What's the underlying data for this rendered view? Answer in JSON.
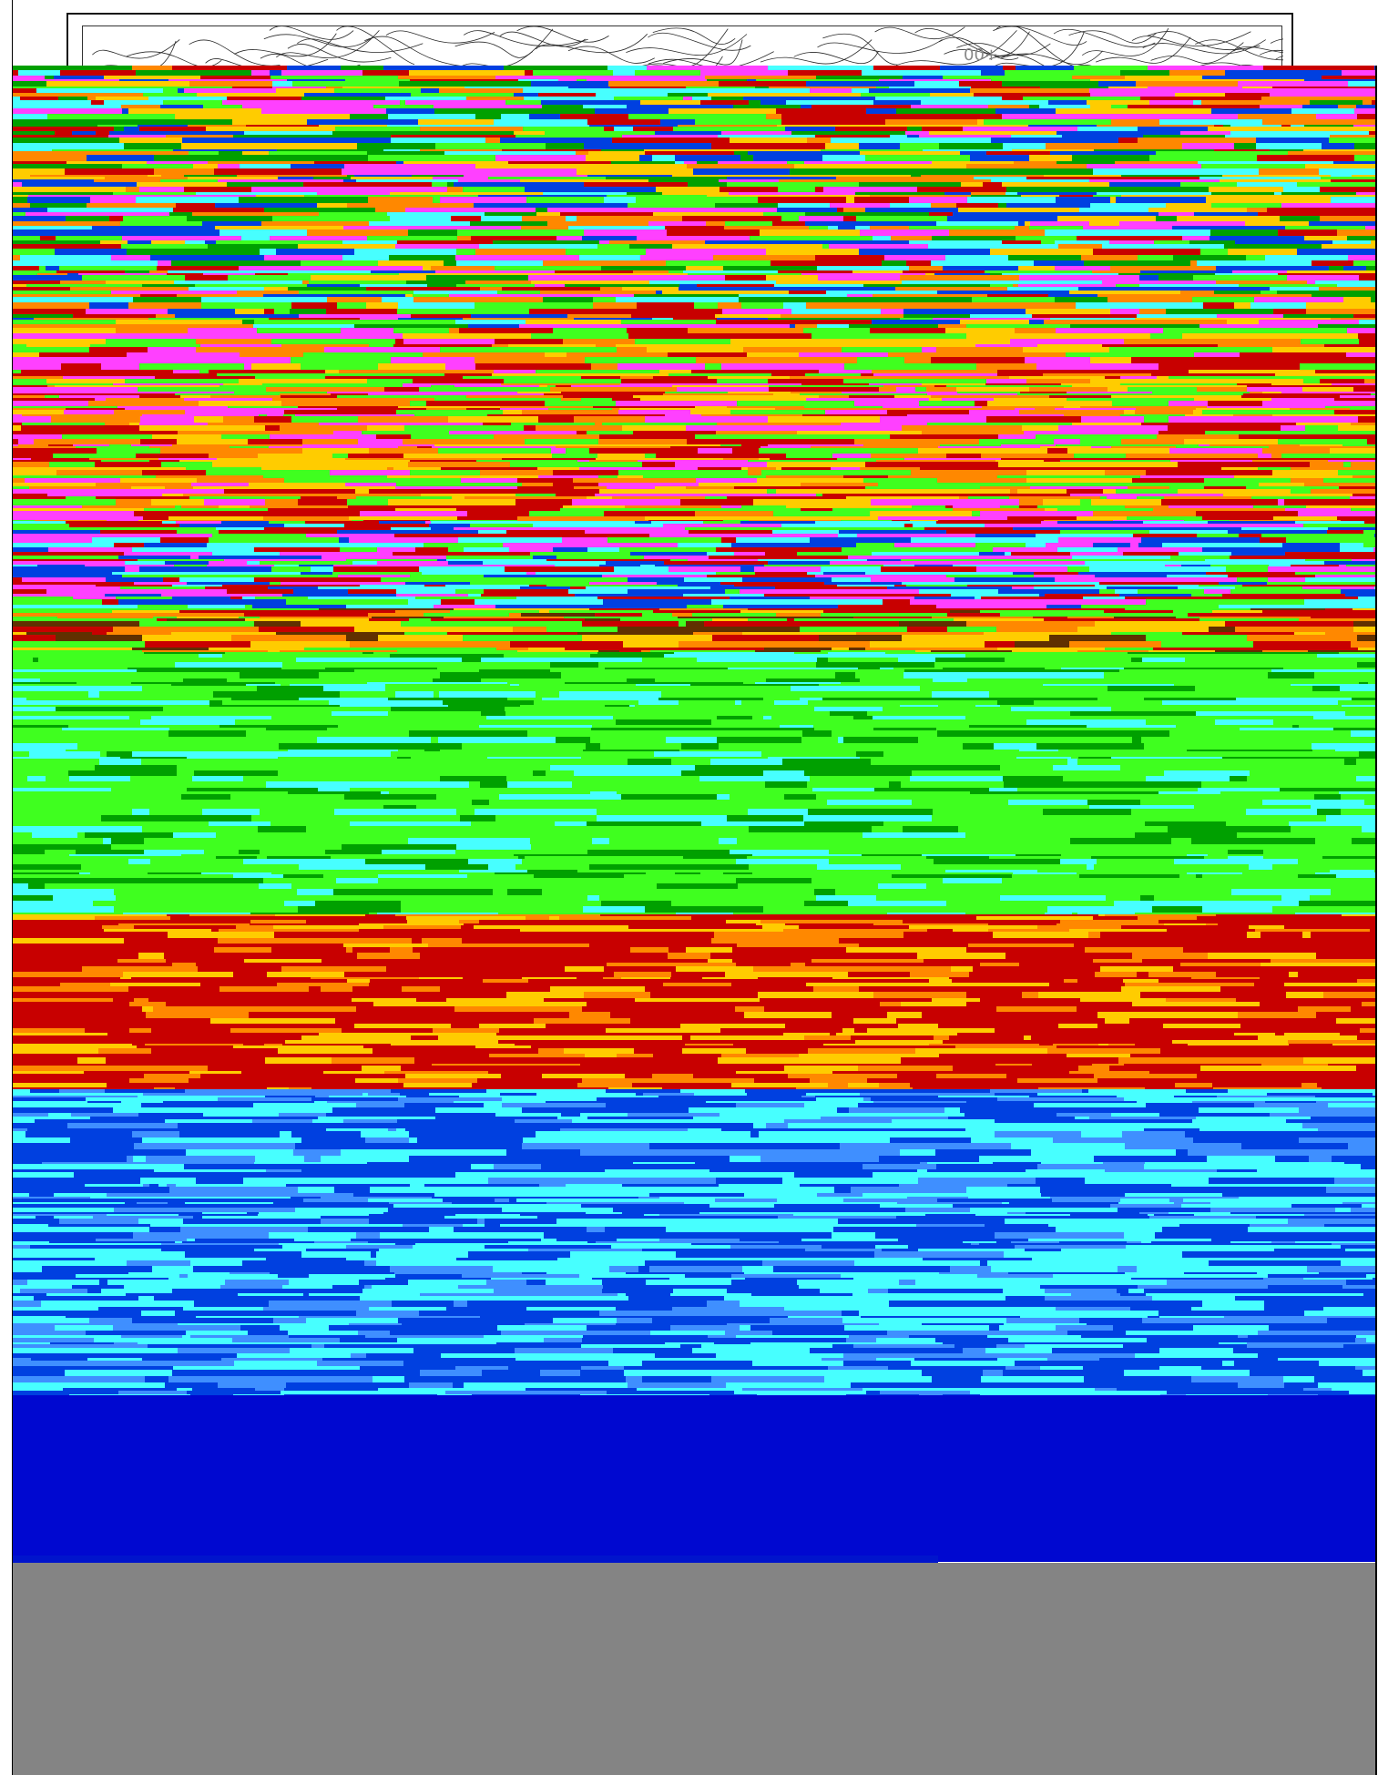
{
  "map_header": {
    "label": "00+",
    "line_color": "#2a2a2a"
  },
  "palette": {
    "cyan": "#47ffff",
    "blue": "#0040e0",
    "dark_blue": "#0008d0",
    "green": "#3fff1f",
    "dark_green": "#00a000",
    "red": "#c80000",
    "orange": "#ff8800",
    "yellow": "#ffcc00",
    "magenta": "#ff40ff",
    "brown": "#603000",
    "gray": "#848484"
  },
  "bands": [
    {
      "name": "mixed-noise",
      "colors": [
        "#47ffff",
        "#3fff1f",
        "#ff8800",
        "#ff40ff",
        "#0040e0",
        "#c80000",
        "#ffcc00",
        "#00a000"
      ],
      "weight": 30
    },
    {
      "name": "red-orange",
      "colors": [
        "#c80000",
        "#ff8800",
        "#ffcc00",
        "#ff40ff",
        "#3fff1f"
      ],
      "weight": 22
    },
    {
      "name": "magenta-cyan",
      "colors": [
        "#ff40ff",
        "#47ffff",
        "#0040e0",
        "#3fff1f",
        "#c80000"
      ],
      "weight": 10
    },
    {
      "name": "dark-earth",
      "colors": [
        "#603000",
        "#ffcc00",
        "#c80000",
        "#3fff1f",
        "#ff8800"
      ],
      "weight": 5
    },
    {
      "name": "green-field",
      "colors": [
        "#3fff1f",
        "#3fff1f",
        "#00a000",
        "#3fff1f",
        "#47ffff"
      ],
      "weight": 30
    },
    {
      "name": "red-field",
      "colors": [
        "#c80000",
        "#c80000",
        "#ff8800",
        "#ffcc00",
        "#c80000"
      ],
      "weight": 20
    },
    {
      "name": "blue-field",
      "colors": [
        "#0040e0",
        "#47ffff",
        "#3f8fff",
        "#0040e0",
        "#47ffff"
      ],
      "weight": 35
    },
    {
      "name": "deep-blue",
      "colors": [
        "#0008d0"
      ],
      "weight": 19
    }
  ]
}
